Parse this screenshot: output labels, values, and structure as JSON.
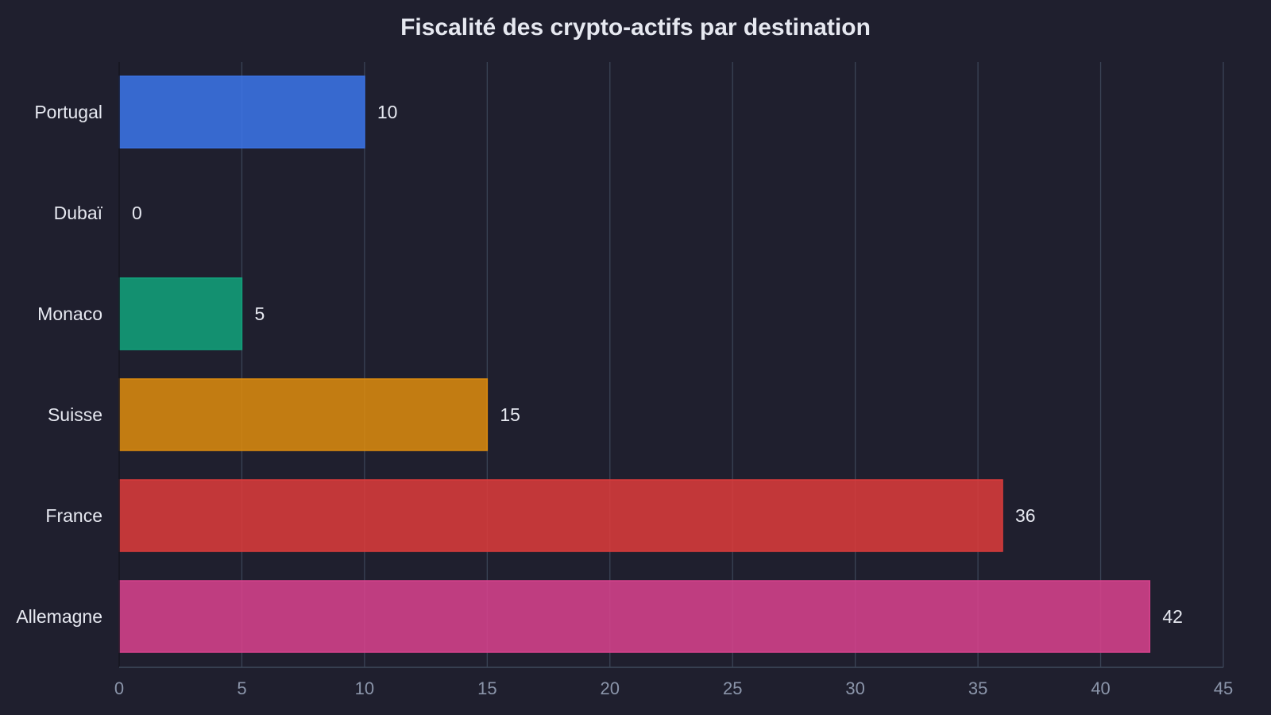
{
  "chart_data": {
    "type": "bar",
    "orientation": "horizontal",
    "title": "Fiscalité des crypto-actifs par destination",
    "xlabel": "",
    "ylabel": "",
    "categories": [
      "Portugal",
      "Dubaï",
      "Monaco",
      "Suisse",
      "France",
      "Allemagne"
    ],
    "values": [
      10,
      0,
      5,
      15,
      36,
      42
    ],
    "colors": [
      "#3b74e6",
      "#6b7280",
      "#12a07a",
      "#d98a0f",
      "#d93b3b",
      "#d6428c"
    ],
    "xlim": [
      0,
      45
    ],
    "xticks": [
      0,
      5,
      10,
      15,
      20,
      25,
      30,
      35,
      40,
      45
    ],
    "grid": true,
    "legend": "none"
  },
  "theme": {
    "background": "#1f1f2e",
    "grid_color": "#3a4456",
    "axis_color": "#3a4456",
    "text_color": "#e6e8f0",
    "tick_color": "#8b95aa"
  }
}
